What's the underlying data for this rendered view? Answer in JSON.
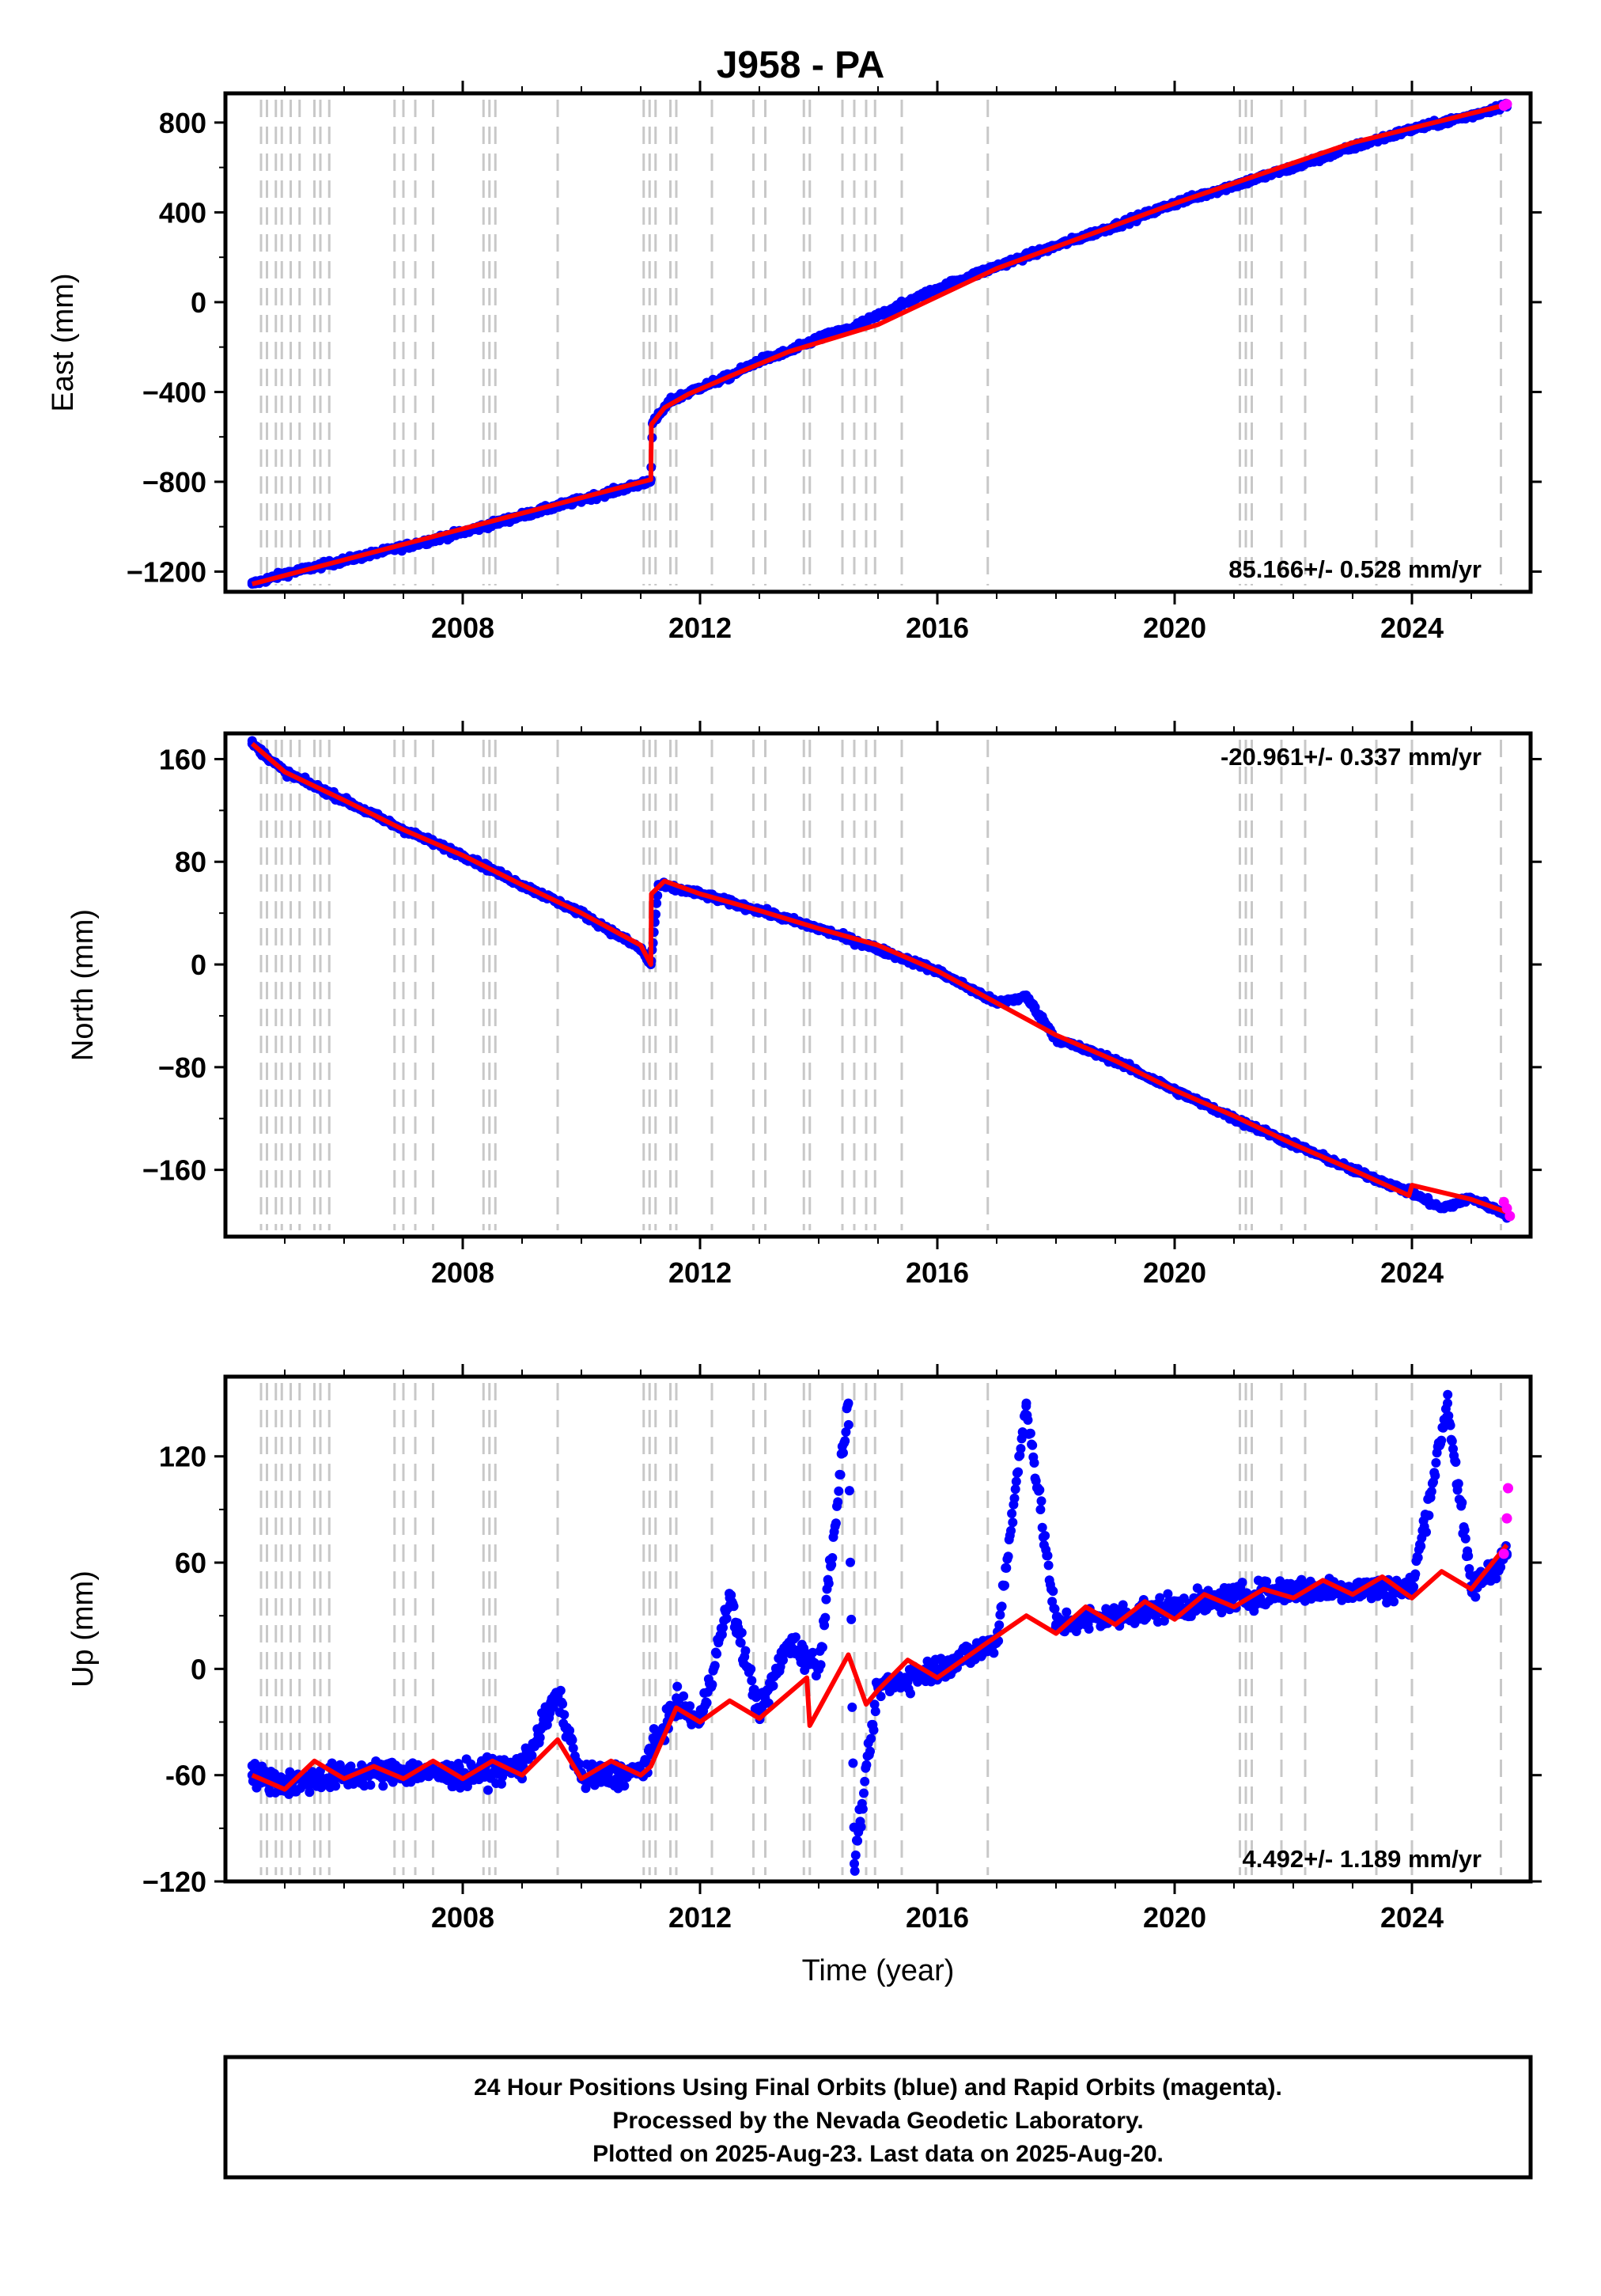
{
  "title": "J958 - PA",
  "chart_data": [
    {
      "type": "scatter",
      "panel": "east",
      "ylabel": "East (mm)",
      "xlabel": "",
      "xlim": [
        2004.0,
        2026.0
      ],
      "ylim": [
        -1290,
        930
      ],
      "yticks": [
        800,
        400,
        0,
        -400,
        -800,
        -1200
      ],
      "ytick_labels": [
        "800",
        "400",
        "0",
        "−400",
        "−800",
        "−1200"
      ],
      "xticks": [
        2008,
        2012,
        2016,
        2020,
        2024
      ],
      "xtick_labels": [
        "2008",
        "2012",
        "2016",
        "2020",
        "2024"
      ],
      "rate_text": "85.166+/- 0.528 mm/yr",
      "rate_position": "bottom-right",
      "model_line": {
        "color": "#ff0000",
        "x": [
          2004.45,
          2011.17,
          2011.18,
          2011.4,
          2011.8,
          2012.5,
          2013.5,
          2015.0,
          2017.0,
          2020.0,
          2023.0,
          2025.6
        ],
        "y": [
          -1255,
          -790,
          -545,
          -470,
          -410,
          -330,
          -220,
          -100,
          150,
          440,
          710,
          880
        ]
      },
      "final_series": {
        "name": "Final Orbits",
        "color": "#0000ff",
        "x": [
          2004.45,
          2005.0,
          2006.0,
          2007.0,
          2008.0,
          2009.0,
          2010.0,
          2011.0,
          2011.17,
          2011.2,
          2011.5,
          2012.0,
          2012.5,
          2013.0,
          2013.5,
          2014.0,
          2014.5,
          2015.0,
          2016.0,
          2017.0,
          2018.0,
          2019.0,
          2020.0,
          2021.0,
          2022.0,
          2023.0,
          2024.0,
          2025.0,
          2025.6
        ],
        "y": [
          -1255,
          -1210,
          -1150,
          -1090,
          -1025,
          -950,
          -880,
          -810,
          -790,
          -540,
          -440,
          -380,
          -330,
          -260,
          -220,
          -160,
          -120,
          -60,
          60,
          160,
          250,
          340,
          440,
          520,
          600,
          690,
          770,
          830,
          880
        ]
      },
      "rapid_series": {
        "name": "Rapid Orbits",
        "color": "#ff00ff",
        "x": [
          2025.55,
          2025.6
        ],
        "y": [
          875,
          882
        ]
      },
      "offset_epochs": [
        2004.6,
        2004.7,
        2004.85,
        2004.95,
        2005.1,
        2005.25,
        2005.5,
        2005.6,
        2005.75,
        2006.85,
        2007.0,
        2007.2,
        2007.5,
        2008.35,
        2008.45,
        2008.55,
        2009.6,
        2011.05,
        2011.15,
        2011.25,
        2011.5,
        2011.6,
        2012.2,
        2012.9,
        2013.1,
        2013.75,
        2013.85,
        2014.4,
        2014.6,
        2014.8,
        2014.95,
        2015.4,
        2016.85,
        2021.1,
        2021.2,
        2021.3,
        2021.8,
        2022.2,
        2023.4,
        2024.0,
        2025.5
      ]
    },
    {
      "type": "scatter",
      "panel": "north",
      "ylabel": "North (mm)",
      "xlabel": "",
      "xlim": [
        2004.0,
        2026.0
      ],
      "ylim": [
        -212,
        180
      ],
      "yticks": [
        160,
        80,
        0,
        -80,
        -160
      ],
      "ytick_labels": [
        "160",
        "80",
        "0",
        "−80",
        "−160"
      ],
      "xticks": [
        2008,
        2012,
        2016,
        2020,
        2024
      ],
      "xtick_labels": [
        "2008",
        "2012",
        "2016",
        "2020",
        "2024"
      ],
      "rate_text": "-20.961+/- 0.337 mm/yr",
      "rate_position": "top-right",
      "model_line": {
        "color": "#ff0000",
        "x": [
          2004.45,
          2004.7,
          2005.0,
          2006.0,
          2007.0,
          2008.0,
          2009.0,
          2010.0,
          2011.0,
          2011.17,
          2011.18,
          2011.4,
          2012.0,
          2013.0,
          2014.0,
          2015.0,
          2016.0,
          2017.0,
          2018.0,
          2019.0,
          2020.0,
          2021.0,
          2022.0,
          2023.0,
          2023.95,
          2024.0,
          2025.0,
          2025.6
        ],
        "y": [
          172,
          162,
          150,
          128,
          105,
          85,
          62,
          40,
          15,
          0,
          55,
          65,
          55,
          42,
          28,
          15,
          -5,
          -30,
          -55,
          -75,
          -98,
          -118,
          -140,
          -160,
          -180,
          -172,
          -183,
          -193
        ]
      },
      "final_series": {
        "name": "Final Orbits",
        "color": "#0000ff",
        "x": [
          2004.45,
          2005.0,
          2006.0,
          2007.0,
          2008.0,
          2009.0,
          2010.0,
          2011.0,
          2011.17,
          2011.3,
          2012.0,
          2013.0,
          2014.0,
          2015.0,
          2016.0,
          2017.0,
          2017.5,
          2018.0,
          2019.0,
          2020.0,
          2021.0,
          2022.0,
          2023.0,
          2024.0,
          2024.5,
          2025.0,
          2025.6
        ],
        "y": [
          172,
          150,
          128,
          105,
          85,
          62,
          40,
          12,
          0,
          62,
          55,
          42,
          28,
          12,
          -5,
          -30,
          -25,
          -58,
          -75,
          -98,
          -120,
          -140,
          -160,
          -178,
          -190,
          -182,
          -195
        ]
      },
      "rapid_series": {
        "name": "Rapid Orbits",
        "color": "#ff00ff",
        "x": [
          2025.55,
          2025.6,
          2025.65
        ],
        "y": [
          -185,
          -190,
          -196
        ]
      },
      "offset_epochs": [
        2004.6,
        2004.7,
        2004.85,
        2004.95,
        2005.1,
        2005.25,
        2005.5,
        2005.6,
        2005.75,
        2006.85,
        2007.0,
        2007.2,
        2007.5,
        2008.35,
        2008.45,
        2008.55,
        2009.6,
        2011.05,
        2011.15,
        2011.25,
        2011.5,
        2011.6,
        2012.2,
        2012.9,
        2013.1,
        2013.75,
        2013.85,
        2014.4,
        2014.6,
        2014.8,
        2014.95,
        2015.4,
        2016.85,
        2021.1,
        2021.2,
        2021.3,
        2021.8,
        2022.2,
        2023.4,
        2024.0,
        2025.5
      ]
    },
    {
      "type": "scatter",
      "panel": "up",
      "ylabel": "Up (mm)",
      "xlabel": "Time (year)",
      "xlim": [
        2004.0,
        2026.0
      ],
      "ylim": [
        -120,
        165
      ],
      "yticks": [
        120,
        60,
        0,
        -60,
        -120
      ],
      "ytick_labels": [
        "120",
        "60",
        "0",
        "-60",
        "−120"
      ],
      "xticks": [
        2008,
        2012,
        2016,
        2020,
        2024
      ],
      "xtick_labels": [
        "2008",
        "2012",
        "2016",
        "2020",
        "2024"
      ],
      "rate_text": "4.492+/- 1.189 mm/yr",
      "rate_position": "bottom-right",
      "model_line": {
        "color": "#ff0000",
        "x": [
          2004.45,
          2005.0,
          2005.5,
          2006.0,
          2006.5,
          2007.0,
          2007.5,
          2008.0,
          2008.5,
          2009.0,
          2009.6,
          2010.0,
          2010.5,
          2011.0,
          2011.17,
          2011.6,
          2012.0,
          2012.5,
          2013.0,
          2013.8,
          2013.85,
          2014.5,
          2014.8,
          2015.0,
          2015.5,
          2016.0,
          2016.85,
          2017.5,
          2018.0,
          2018.5,
          2019.0,
          2019.5,
          2020.0,
          2020.5,
          2021.0,
          2021.5,
          2022.0,
          2022.5,
          2023.0,
          2023.5,
          2024.0,
          2024.5,
          2025.0,
          2025.6
        ],
        "y": [
          -60,
          -68,
          -52,
          -62,
          -55,
          -62,
          -52,
          -62,
          -52,
          -60,
          -40,
          -62,
          -52,
          -60,
          -55,
          -22,
          -30,
          -18,
          -28,
          -5,
          -32,
          8,
          -20,
          -12,
          5,
          -5,
          15,
          30,
          20,
          35,
          25,
          38,
          28,
          42,
          35,
          45,
          40,
          50,
          42,
          52,
          40,
          55,
          45,
          70
        ]
      },
      "final_series": {
        "name": "Final Orbits",
        "color": "#0000ff",
        "x": [
          2004.45,
          2005.0,
          2006.0,
          2007.0,
          2008.0,
          2009.0,
          2009.6,
          2010.0,
          2011.0,
          2011.6,
          2012.0,
          2012.5,
          2013.0,
          2013.5,
          2014.0,
          2014.5,
          2014.6,
          2015.0,
          2016.0,
          2017.0,
          2017.5,
          2018.0,
          2019.0,
          2020.0,
          2021.0,
          2022.0,
          2023.0,
          2024.0,
          2024.6,
          2025.0,
          2025.6
        ],
        "y": [
          -60,
          -65,
          -60,
          -58,
          -60,
          -55,
          -15,
          -62,
          -58,
          -20,
          -30,
          40,
          -25,
          15,
          0,
          150,
          -110,
          -10,
          0,
          15,
          150,
          25,
          30,
          35,
          40,
          45,
          45,
          45,
          150,
          45,
          65
        ]
      },
      "rapid_series": {
        "name": "Rapid Orbits",
        "color": "#ff00ff",
        "x": [
          2025.55,
          2025.6,
          2025.62
        ],
        "y": [
          65,
          85,
          102
        ]
      },
      "offset_epochs": [
        2004.6,
        2004.7,
        2004.85,
        2004.95,
        2005.1,
        2005.25,
        2005.5,
        2005.6,
        2005.75,
        2006.85,
        2007.0,
        2007.2,
        2007.5,
        2008.35,
        2008.45,
        2008.55,
        2009.6,
        2011.05,
        2011.15,
        2011.25,
        2011.5,
        2011.6,
        2012.2,
        2012.9,
        2013.1,
        2013.75,
        2013.85,
        2014.4,
        2014.6,
        2014.8,
        2014.95,
        2015.4,
        2016.85,
        2021.1,
        2021.2,
        2021.3,
        2021.8,
        2022.2,
        2023.4,
        2024.0,
        2025.5
      ]
    }
  ],
  "caption": {
    "line1": "24 Hour Positions Using Final Orbits (blue) and Rapid Orbits (magenta).",
    "line2": "Processed by the Nevada Geodetic Laboratory.",
    "line3": "Plotted on 2025-Aug-23. Last data on 2025-Aug-20."
  }
}
